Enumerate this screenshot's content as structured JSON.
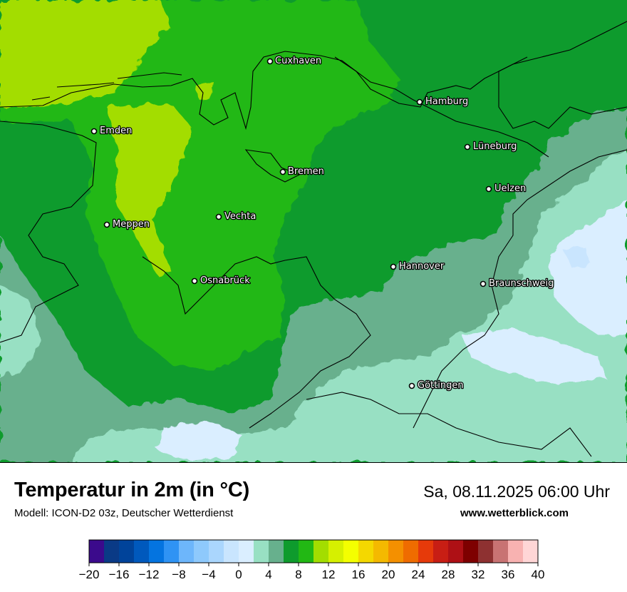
{
  "map": {
    "cities": [
      {
        "name": "Cuxhaven"
      },
      {
        "name": "Hamburg"
      },
      {
        "name": "Emden"
      },
      {
        "name": "Lüneburg"
      },
      {
        "name": "Bremen"
      },
      {
        "name": "Uelzen"
      },
      {
        "name": "Vechta"
      },
      {
        "name": "Meppen"
      },
      {
        "name": "Hannover"
      },
      {
        "name": "Osnabrück"
      },
      {
        "name": "Braunschweig"
      },
      {
        "name": "Göttingen"
      }
    ]
  },
  "footer": {
    "title": "Temperatur in 2m (in °C)",
    "subtitle": "Modell: ICON-D2 03z, Deutscher Wetterdienst",
    "datetime": "Sa, 08.11.2025 06:00 Uhr",
    "website": "www.wetterblick.com"
  },
  "legend": {
    "ticks": [
      "−20",
      "−16",
      "−12",
      "−8",
      "−4",
      "0",
      "4",
      "8",
      "12",
      "16",
      "20",
      "24",
      "28",
      "32",
      "36",
      "40"
    ],
    "colors": [
      "#3b0a8c",
      "#0a3a86",
      "#00439a",
      "#0059bd",
      "#0474e0",
      "#2f93f4",
      "#6db6fb",
      "#8ec9fc",
      "#aad6fd",
      "#c9e5fe",
      "#daeeff",
      "#98e0c3",
      "#67b08d",
      "#0e9b2d",
      "#22b814",
      "#a3dd00",
      "#d6f000",
      "#f4ff00",
      "#f4d800",
      "#f4b900",
      "#f49000",
      "#ef6c00",
      "#e63a0a",
      "#c81e14",
      "#ae1015",
      "#7e0000",
      "#8e3131",
      "#c87373",
      "#f8b2b1",
      "#ffd6d6"
    ]
  }
}
